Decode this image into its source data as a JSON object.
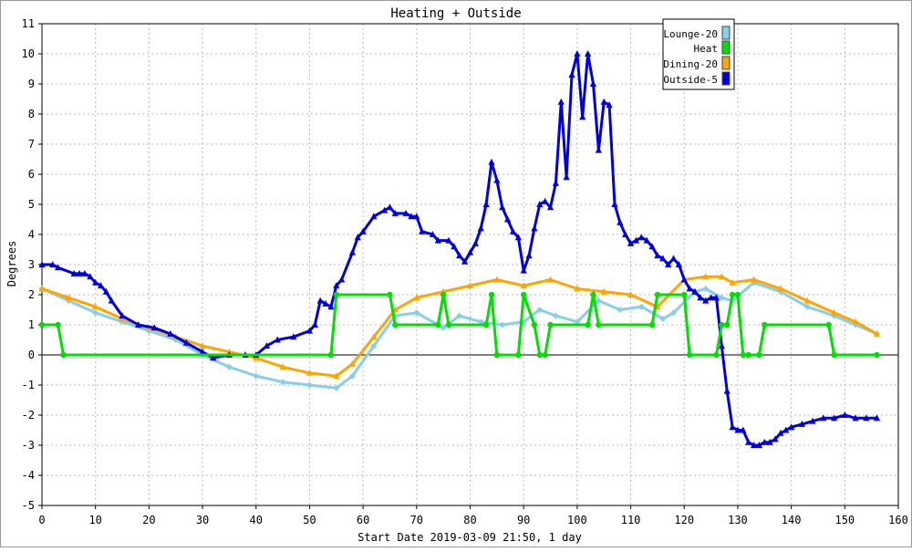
{
  "chart_data": {
    "type": "line",
    "title": "Heating + Outside",
    "xlabel": "Start Date 2019-03-09 21:50, 1 day",
    "ylabel": "Degrees",
    "xlim": [
      0,
      160
    ],
    "ylim": [
      -5,
      11
    ],
    "x_ticks": [
      0,
      10,
      20,
      30,
      40,
      50,
      60,
      70,
      80,
      90,
      100,
      110,
      120,
      130,
      140,
      150,
      160
    ],
    "y_ticks": [
      -5,
      -4,
      -3,
      -2,
      -1,
      0,
      1,
      2,
      3,
      4,
      5,
      6,
      7,
      8,
      9,
      10,
      11
    ],
    "grid": true,
    "legend_position": "top-right",
    "series": [
      {
        "name": "Lounge-20",
        "color": "#87ceeb",
        "marker": "diamond",
        "x": [
          0,
          5,
          10,
          15,
          20,
          25,
          30,
          35,
          40,
          45,
          50,
          55,
          58,
          62,
          66,
          70,
          75,
          78,
          82,
          86,
          90,
          93,
          96,
          100,
          104,
          108,
          112,
          116,
          118,
          122,
          124,
          127,
          129,
          133,
          138,
          143,
          148,
          152,
          156
        ],
        "y": [
          2.2,
          1.8,
          1.4,
          1.1,
          0.8,
          0.5,
          0.0,
          -0.4,
          -0.7,
          -0.9,
          -1.0,
          -1.1,
          -0.7,
          0.3,
          1.3,
          1.4,
          0.9,
          1.3,
          1.1,
          1.0,
          1.1,
          1.5,
          1.3,
          1.1,
          1.8,
          1.5,
          1.6,
          1.2,
          1.4,
          2.1,
          2.2,
          1.9,
          1.8,
          2.4,
          2.1,
          1.6,
          1.3,
          1.0,
          0.7
        ]
      },
      {
        "name": "Heat",
        "color": "#00e000",
        "marker": "circle",
        "x": [
          0,
          3,
          4,
          54,
          55,
          65,
          66,
          74,
          75,
          76,
          83,
          84,
          85,
          89,
          90,
          92,
          93,
          94,
          95,
          102,
          103,
          104,
          114,
          115,
          120,
          121,
          126,
          127,
          128,
          129,
          130,
          131,
          132,
          134,
          135,
          147,
          148,
          156
        ],
        "y": [
          1,
          1,
          0,
          0,
          2,
          2,
          1,
          1,
          2,
          1,
          1,
          2,
          0,
          0,
          2,
          1,
          0,
          0,
          1,
          1,
          2,
          1,
          1,
          2,
          2,
          0,
          0,
          1,
          1,
          2,
          2,
          0,
          0,
          0,
          1,
          1,
          0,
          0
        ]
      },
      {
        "name": "Dining-20",
        "color": "#ffa500",
        "marker": "triangle",
        "x": [
          0,
          5,
          10,
          15,
          20,
          25,
          30,
          35,
          40,
          45,
          50,
          55,
          58,
          62,
          66,
          70,
          75,
          80,
          85,
          90,
          95,
          100,
          105,
          110,
          115,
          120,
          124,
          127,
          129,
          133,
          138,
          143,
          148,
          152,
          156
        ],
        "y": [
          2.2,
          1.9,
          1.6,
          1.2,
          0.9,
          0.6,
          0.3,
          0.1,
          -0.1,
          -0.4,
          -0.6,
          -0.7,
          -0.3,
          0.6,
          1.5,
          1.9,
          2.1,
          2.3,
          2.5,
          2.3,
          2.5,
          2.2,
          2.1,
          2.0,
          1.6,
          2.5,
          2.6,
          2.6,
          2.4,
          2.5,
          2.2,
          1.8,
          1.4,
          1.1,
          0.7
        ]
      },
      {
        "name": "Outside-5",
        "color": "#0000e0",
        "marker": "triangle",
        "x": [
          0,
          2,
          3,
          6,
          7,
          8,
          9,
          10,
          11,
          12,
          13,
          15,
          18,
          21,
          24,
          27,
          30,
          32,
          35,
          38,
          40,
          42,
          44,
          47,
          50,
          51,
          52,
          53,
          54,
          55,
          56,
          58,
          59,
          60,
          62,
          64,
          65,
          66,
          68,
          69,
          70,
          71,
          73,
          74,
          76,
          77,
          78,
          79,
          80,
          81,
          82,
          83,
          84,
          85,
          86,
          87,
          88,
          89,
          90,
          91,
          92,
          93,
          94,
          95,
          96,
          97,
          98,
          99,
          100,
          101,
          102,
          103,
          104,
          105,
          106,
          107,
          108,
          109,
          110,
          111,
          112,
          113,
          114,
          115,
          116,
          117,
          118,
          119,
          120,
          121,
          122,
          123,
          124,
          125,
          126,
          127,
          128,
          129,
          130,
          131,
          132,
          133,
          134,
          135,
          136,
          137,
          138,
          139,
          140,
          142,
          144,
          146,
          148,
          150,
          152,
          154,
          156
        ],
        "y": [
          3.0,
          3.0,
          2.9,
          2.7,
          2.7,
          2.7,
          2.6,
          2.4,
          2.3,
          2.1,
          1.8,
          1.3,
          1.0,
          0.9,
          0.7,
          0.4,
          0.1,
          -0.1,
          0.0,
          0.0,
          0.0,
          0.3,
          0.5,
          0.6,
          0.8,
          1.0,
          1.8,
          1.7,
          1.6,
          2.3,
          2.5,
          3.4,
          3.9,
          4.1,
          4.6,
          4.8,
          4.9,
          4.7,
          4.7,
          4.6,
          4.6,
          4.1,
          4.0,
          3.8,
          3.8,
          3.6,
          3.3,
          3.1,
          3.4,
          3.7,
          4.2,
          5.0,
          6.4,
          5.8,
          4.9,
          4.5,
          4.1,
          3.9,
          2.8,
          3.3,
          4.2,
          5.0,
          5.1,
          4.9,
          5.7,
          8.4,
          5.9,
          9.3,
          10.0,
          7.9,
          10.0,
          9.0,
          6.8,
          8.4,
          8.3,
          5.0,
          4.4,
          4.0,
          3.7,
          3.8,
          3.9,
          3.8,
          3.6,
          3.3,
          3.2,
          3.0,
          3.2,
          3.0,
          2.5,
          2.2,
          2.1,
          1.9,
          1.8,
          1.9,
          1.9,
          0.3,
          -1.2,
          -2.4,
          -2.5,
          -2.5,
          -2.9,
          -3.0,
          -3.0,
          -2.9,
          -2.9,
          -2.8,
          -2.6,
          -2.5,
          -2.4,
          -2.3,
          -2.2,
          -2.1,
          -2.1,
          -2.0,
          -2.1,
          -2.1,
          -2.1
        ]
      }
    ]
  }
}
